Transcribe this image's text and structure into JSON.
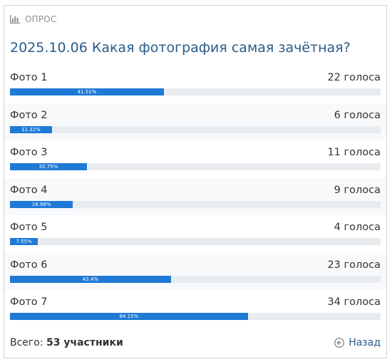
{
  "header": {
    "label": "ОПРОС"
  },
  "poll": {
    "title": "2025.10.06 Какая фотография самая зачётная?",
    "options": [
      {
        "label": "Фото 1",
        "votes": "22 голоса",
        "percent_text": "41.51%",
        "percent": 41.51
      },
      {
        "label": "Фото 2",
        "votes": "6 голоса",
        "percent_text": "11.32%",
        "percent": 11.32
      },
      {
        "label": "Фото 3",
        "votes": "11 голоса",
        "percent_text": "20.75%",
        "percent": 20.75
      },
      {
        "label": "Фото 4",
        "votes": "9 голоса",
        "percent_text": "16.98%",
        "percent": 16.98
      },
      {
        "label": "Фото 5",
        "votes": "4 голоса",
        "percent_text": "7.55%",
        "percent": 7.55
      },
      {
        "label": "Фото 6",
        "votes": "23 голоса",
        "percent_text": "43.4%",
        "percent": 43.4
      },
      {
        "label": "Фото 7",
        "votes": "34 голоса",
        "percent_text": "64.15%",
        "percent": 64.15
      }
    ]
  },
  "footer": {
    "total_label": "Всего:",
    "total_value": "53 участники",
    "back_label": "Назад"
  },
  "colors": {
    "title": "#2a5c8a",
    "bar_fill": "#1f7ad6",
    "bar_track": "#e9ecef",
    "header_text": "#8a8f96"
  },
  "icons": {
    "header": "bar-chart-icon",
    "back": "arrow-left-circle-icon"
  }
}
